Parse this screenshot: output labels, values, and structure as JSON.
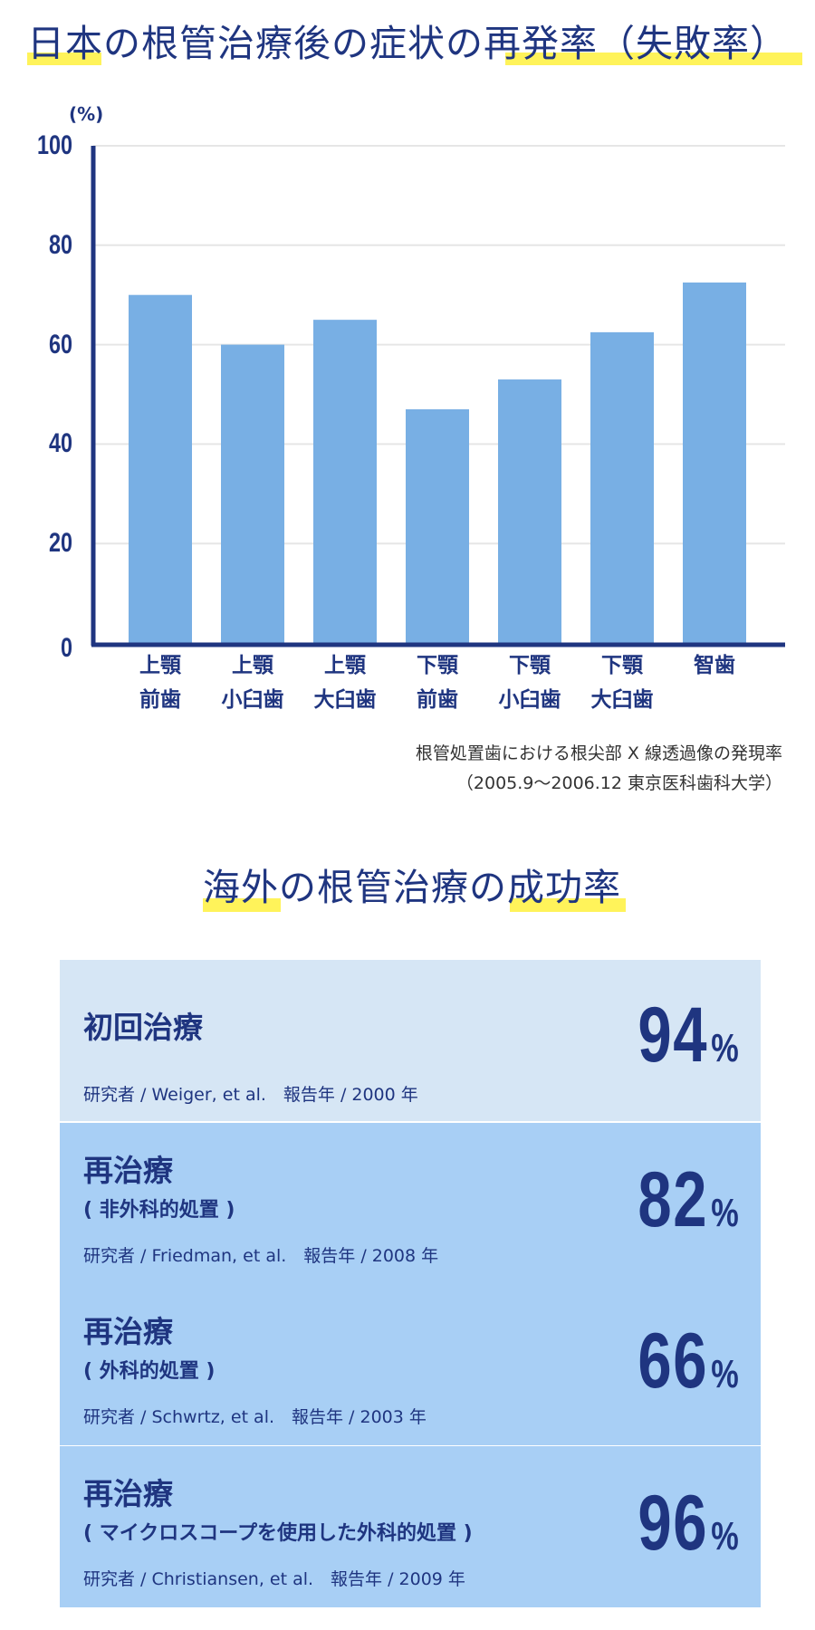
{
  "chart_data": {
    "type": "bar",
    "title": "日本の根管治療後の症状の再発率（失敗率）",
    "ylabel": "(%)",
    "ylim": [
      0,
      100
    ],
    "yticks": [
      "0",
      "20",
      "40",
      "60",
      "80",
      "100"
    ],
    "grid": true,
    "categories": [
      [
        "上顎",
        "前歯"
      ],
      [
        "上顎",
        "小臼歯"
      ],
      [
        "上顎",
        "大臼歯"
      ],
      [
        "下顎",
        "前歯"
      ],
      [
        "下顎",
        "小臼歯"
      ],
      [
        "下顎",
        "大臼歯"
      ],
      [
        "智歯",
        ""
      ]
    ],
    "values": [
      70,
      60,
      65,
      47,
      53,
      62.5,
      72.5
    ],
    "bar_color": "#78afe4",
    "axis_color": "#1f3580",
    "note": [
      "根管処置歯における根尖部 X 線透過像の発現率",
      "（2005.9〜2006.12 東京医科歯科大学）"
    ]
  },
  "title1": {
    "hl1": "日本",
    "mid": "の根管治療後の症状の",
    "hl2": "再発率（失敗率）"
  },
  "title2": {
    "hl1": "海外",
    "mid": "の根管治療の",
    "hl2": "成功率"
  },
  "cards": [
    {
      "title": "初回治療",
      "sub": "",
      "ref": "研究者 / Weiger, et al.　報告年 / 2000 年",
      "value": "94",
      "unit": "%"
    },
    {
      "title": "再治療",
      "sub": "( 非外科的処置 )",
      "ref": "研究者 / Friedman, et al.　報告年 / 2008 年",
      "value": "82",
      "unit": "%"
    },
    {
      "title": "再治療",
      "sub": "( 外科的処置 )",
      "ref": "研究者 / Schwrtz, et al.　報告年 / 2003 年",
      "value": "66",
      "unit": "%"
    },
    {
      "title": "再治療",
      "sub": "( マイクロスコープを使用した外科的処置 )",
      "ref": "研究者 / Christiansen, et al.　報告年 / 2009 年",
      "value": "96",
      "unit": "%"
    }
  ],
  "colors": {
    "text": "#1f3580",
    "highlight": "#fff35a",
    "card_first": "#d6e6f5",
    "card": "#a8cff5"
  }
}
